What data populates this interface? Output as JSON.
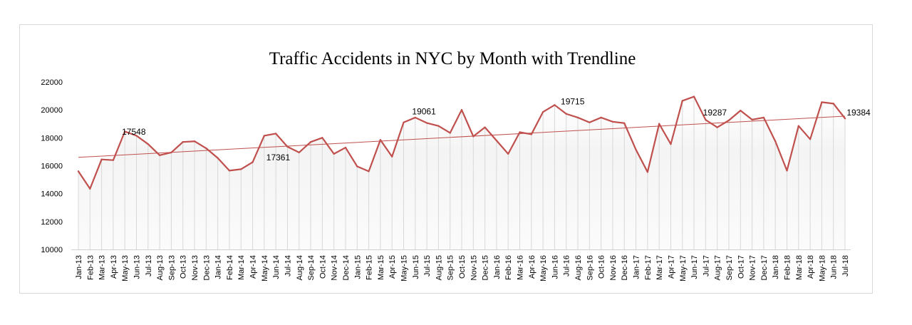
{
  "chart_data": {
    "type": "line",
    "title": "Traffic Accidents in NYC  by Month with  Trendline",
    "xlabel": "",
    "ylabel": "",
    "ylim": [
      10000,
      22000
    ],
    "yticks": [
      10000,
      12000,
      14000,
      16000,
      18000,
      20000,
      22000
    ],
    "grid": "vertical drop lines to each point",
    "legend": "none",
    "colors": {
      "line": "#c0504d",
      "trend": "#c0504d",
      "area_top": "#f4f4f4",
      "drop_lines": "#d8d8d8"
    },
    "categories": [
      "Jan-13",
      "Feb-13",
      "Mar-13",
      "Apr-13",
      "May-13",
      "Jun-13",
      "Jul-13",
      "Aug-13",
      "Sep-13",
      "Oct-13",
      "Nov-13",
      "Dec-13",
      "Jan-14",
      "Feb-14",
      "Mar-14",
      "Apr-14",
      "May-14",
      "Jun-14",
      "Jul-14",
      "Aug-14",
      "Sep-14",
      "Oct-14",
      "Nov-14",
      "Dec-14",
      "Jan-15",
      "Feb-15",
      "Mar-15",
      "Apr-15",
      "May-15",
      "Jun-15",
      "Jul-15",
      "Aug-15",
      "Sep-15",
      "Oct-15",
      "Nov-15",
      "Dec-15",
      "Jan-16",
      "Feb-16",
      "Mar-16",
      "Apr-16",
      "May-16",
      "Jun-16",
      "Jul-16",
      "Aug-16",
      "Sep-16",
      "Oct-16",
      "Nov-16",
      "Dec-16",
      "Jan-17",
      "Feb-17",
      "Mar-17",
      "Apr-17",
      "May-17",
      "Jun-17",
      "Jul-17",
      "Aug-17",
      "Sep-17",
      "Oct-17",
      "Nov-17",
      "Dec-17",
      "Jan-18",
      "Feb-18",
      "Mar-18",
      "Apr-18",
      "May-18",
      "Jun-18",
      "Jul-18"
    ],
    "series": [
      {
        "values": [
          15600,
          14350,
          16450,
          16400,
          18450,
          18150,
          17548,
          16750,
          16950,
          17700,
          17750,
          17250,
          16550,
          15650,
          15750,
          16250,
          18150,
          18300,
          17361,
          16950,
          17700,
          18000,
          16850,
          17300,
          15950,
          15600,
          17850,
          16650,
          19100,
          19450,
          19061,
          18850,
          18350,
          20000,
          18100,
          18750,
          17800,
          16850,
          18400,
          18250,
          19850,
          20350,
          19715,
          19450,
          19100,
          19450,
          19150,
          19050,
          17150,
          15550,
          19000,
          17550,
          20650,
          20950,
          19287,
          18750,
          19250,
          19950,
          19300,
          19450,
          17750,
          15650,
          18850,
          17900,
          20550,
          20450,
          19384
        ]
      }
    ],
    "trendline": {
      "type": "linear",
      "start": 16600,
      "end": 19550
    },
    "data_labels": [
      {
        "category": "Jul-13",
        "text": "17548"
      },
      {
        "category": "Jul-14",
        "text": "17361"
      },
      {
        "category": "Jul-15",
        "text": "19061"
      },
      {
        "category": "Jul-16",
        "text": "19715"
      },
      {
        "category": "Jul-17",
        "text": "19287"
      },
      {
        "category": "Jul-18",
        "text": "19384"
      }
    ]
  }
}
